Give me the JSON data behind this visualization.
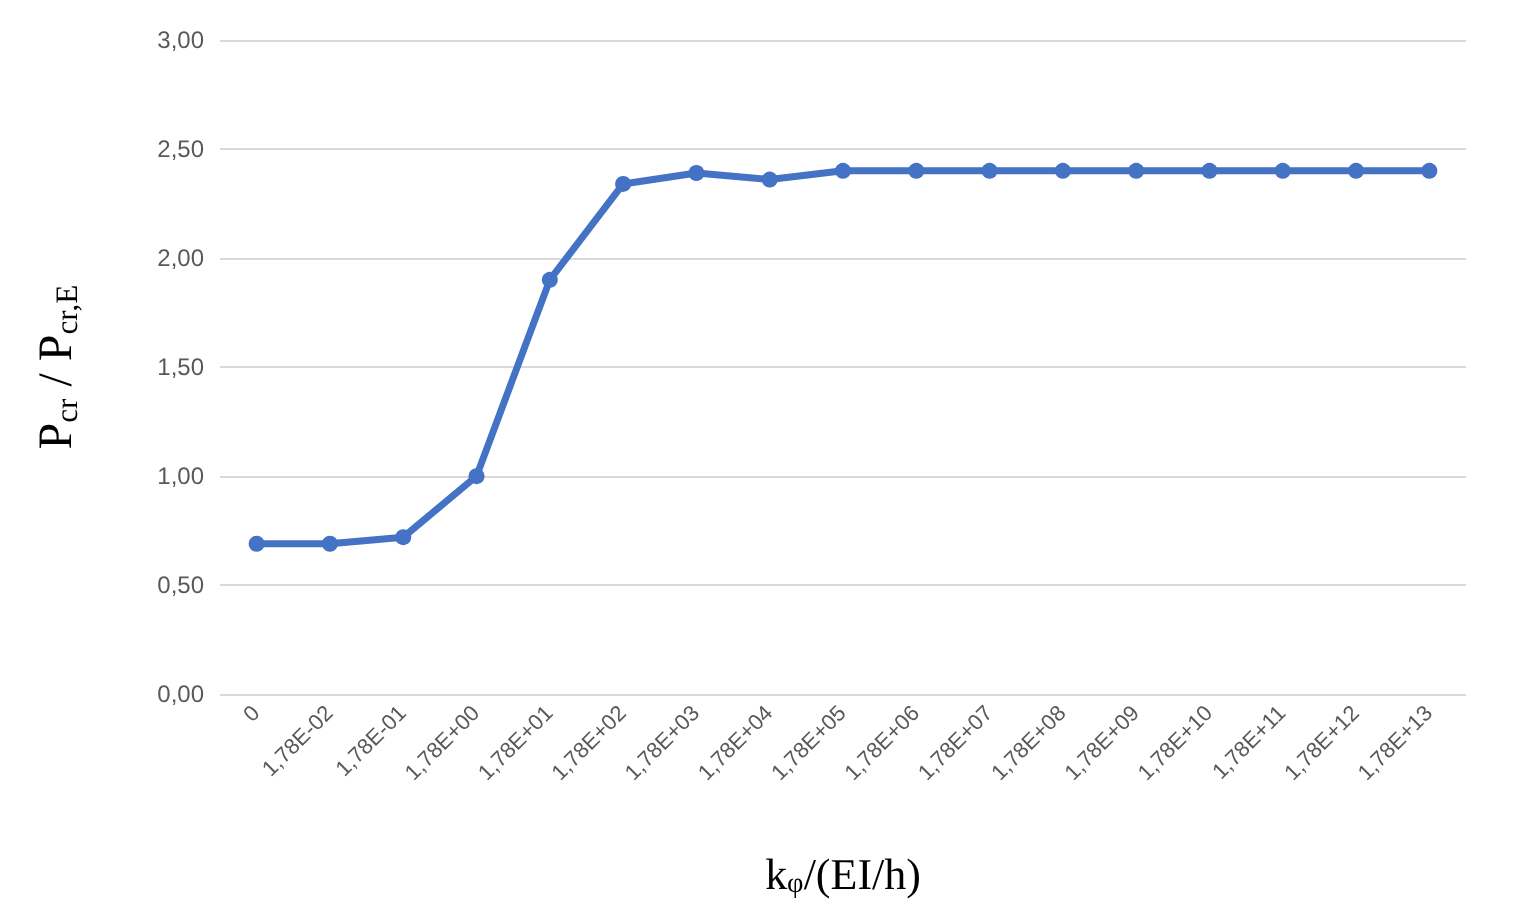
{
  "chart_data": {
    "type": "line",
    "xlabel": "k$_{φ}$/(EI/h)",
    "ylabel": "P$_{cr}$ / P$_{cr,E}$",
    "categories": [
      "0",
      "1,78E-02",
      "1,78E-01",
      "1,78E+00",
      "1,78E+01",
      "1,78E+02",
      "1,78E+03",
      "1,78E+04",
      "1,78E+05",
      "1,78E+06",
      "1,78E+07",
      "1,78E+08",
      "1,78E+09",
      "1,78E+10",
      "1,78E+11",
      "1,78E+12",
      "1,78E+13"
    ],
    "series": [
      {
        "color": "#4472c4",
        "values": [
          0.69,
          0.69,
          0.72,
          1.0,
          1.9,
          2.34,
          2.39,
          2.36,
          2.4,
          2.4,
          2.4,
          2.4,
          2.4,
          2.4,
          2.4,
          2.4,
          2.4
        ]
      }
    ],
    "ylim": [
      0,
      3
    ],
    "yticks": [
      {
        "value": 0,
        "label": "0,00"
      },
      {
        "value": 0.5,
        "label": "0,50"
      },
      {
        "value": 1,
        "label": "1,00"
      },
      {
        "value": 1.5,
        "label": "1,50"
      },
      {
        "value": 2,
        "label": "2,00"
      },
      {
        "value": 2.5,
        "label": "2,50"
      },
      {
        "value": 3,
        "label": "3,00"
      }
    ],
    "grid": "y",
    "marker": "circle",
    "line_style": "solid"
  }
}
